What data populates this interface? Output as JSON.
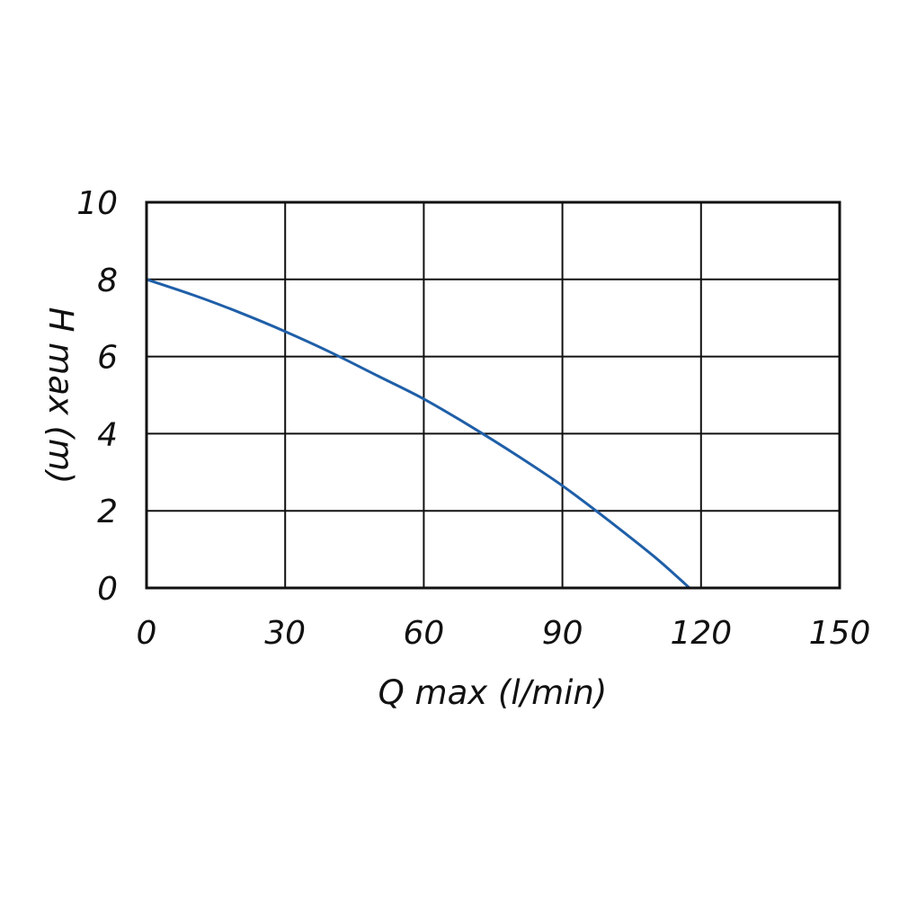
{
  "chart_data": {
    "type": "line",
    "xlabel": "Q max (l/min)",
    "ylabel": "H max (m)",
    "xlim": [
      0,
      150
    ],
    "ylim": [
      0,
      10
    ],
    "x_ticks": [
      "0",
      "30",
      "60",
      "90",
      "120",
      "150"
    ],
    "y_ticks": [
      "0",
      "2",
      "4",
      "6",
      "8",
      "10"
    ],
    "grid": true,
    "series": [
      {
        "color": "#1f5fa8",
        "x": [
          0,
          10,
          20,
          30,
          40,
          50,
          60,
          70,
          80,
          90,
          100,
          110,
          117.5
        ],
        "y": [
          8.0,
          7.6,
          7.15,
          6.65,
          6.1,
          5.5,
          4.9,
          4.2,
          3.45,
          2.65,
          1.75,
          0.8,
          0.0
        ]
      }
    ]
  }
}
